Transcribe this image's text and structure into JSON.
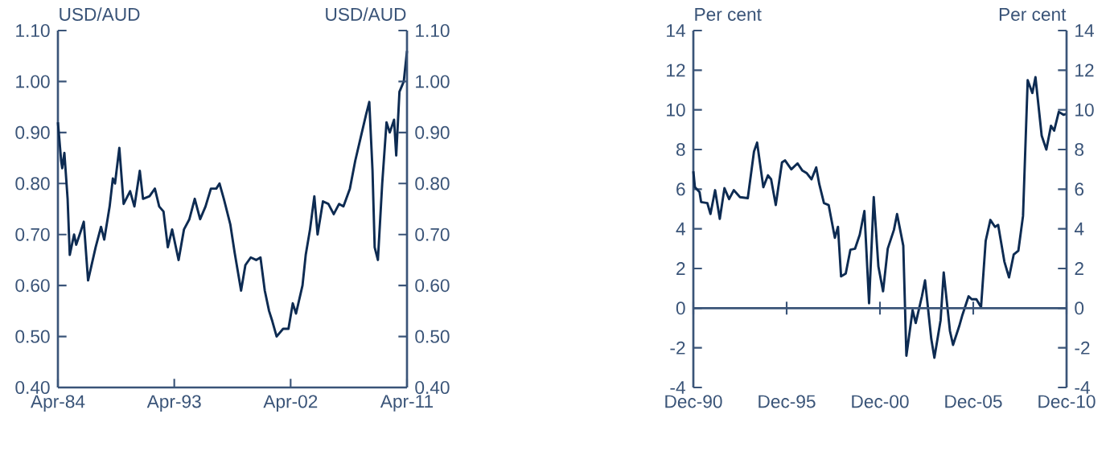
{
  "chart_data": [
    {
      "type": "line",
      "ylabel": "USD/AUD",
      "y2label": "USD/AUD",
      "color": "#0d2b52",
      "x": [
        "1984-04",
        "1984-07",
        "1984-08",
        "1984-10",
        "1985-01",
        "1985-03",
        "1985-07",
        "1985-09",
        "1986-01",
        "1986-04",
        "1986-08",
        "1987-03",
        "1987-08",
        "1987-11",
        "1988-04",
        "1988-07",
        "1988-09",
        "1989-01",
        "1989-05",
        "1989-11",
        "1990-03",
        "1990-08",
        "1990-11",
        "1991-05",
        "1991-10",
        "1992-02",
        "1992-06",
        "1992-10",
        "1993-02",
        "1993-08",
        "1994-01",
        "1994-06",
        "1994-11",
        "1995-04",
        "1995-09",
        "1996-02",
        "1996-07",
        "1996-10",
        "1997-02",
        "1997-08",
        "1997-12",
        "1998-06",
        "1998-10",
        "1999-03",
        "1999-08",
        "1999-12",
        "2000-04",
        "2000-08",
        "2000-11",
        "2001-03",
        "2001-09",
        "2002-02",
        "2002-06",
        "2002-09",
        "2003-03",
        "2003-06",
        "2003-10",
        "2004-02",
        "2004-05",
        "2004-10",
        "2005-03",
        "2005-08",
        "2006-01",
        "2006-05",
        "2006-11",
        "2007-04",
        "2007-09",
        "2008-02",
        "2008-05",
        "2008-08",
        "2008-10",
        "2009-01",
        "2009-05",
        "2009-09",
        "2009-12",
        "2010-04",
        "2010-06",
        "2010-09",
        "2011-01",
        "2011-04"
      ],
      "values": [
        0.92,
        0.845,
        0.83,
        0.86,
        0.77,
        0.66,
        0.7,
        0.68,
        0.705,
        0.725,
        0.61,
        0.675,
        0.715,
        0.69,
        0.755,
        0.81,
        0.8,
        0.87,
        0.76,
        0.785,
        0.755,
        0.825,
        0.77,
        0.775,
        0.79,
        0.755,
        0.745,
        0.675,
        0.71,
        0.65,
        0.71,
        0.73,
        0.77,
        0.73,
        0.755,
        0.79,
        0.79,
        0.8,
        0.77,
        0.72,
        0.665,
        0.59,
        0.64,
        0.655,
        0.65,
        0.655,
        0.59,
        0.55,
        0.53,
        0.5,
        0.515,
        0.515,
        0.565,
        0.545,
        0.6,
        0.66,
        0.71,
        0.775,
        0.7,
        0.765,
        0.76,
        0.74,
        0.76,
        0.755,
        0.79,
        0.845,
        0.89,
        0.935,
        0.96,
        0.825,
        0.675,
        0.65,
        0.8,
        0.92,
        0.9,
        0.925,
        0.855,
        0.98,
        1.0,
        1.06
      ],
      "xlim": [
        "1984-04",
        "2011-04"
      ],
      "xticks": [
        {
          "value": "1984-04",
          "label": "Apr-84"
        },
        {
          "value": "1993-04",
          "label": "Apr-93"
        },
        {
          "value": "2002-04",
          "label": "Apr-02"
        },
        {
          "value": "2011-04",
          "label": "Apr-11"
        }
      ],
      "ylim": [
        0.4,
        1.1
      ],
      "yticks": [
        {
          "value": 0.4,
          "label": "0.40"
        },
        {
          "value": 0.5,
          "label": "0.50"
        },
        {
          "value": 0.6,
          "label": "0.60"
        },
        {
          "value": 0.7,
          "label": "0.70"
        },
        {
          "value": 0.8,
          "label": "0.80"
        },
        {
          "value": 0.9,
          "label": "0.90"
        },
        {
          "value": 1.0,
          "label": "1.00"
        },
        {
          "value": 1.1,
          "label": "1.10"
        }
      ],
      "y2lim": [
        0.4,
        1.1
      ],
      "y2ticks": [
        {
          "value": 0.4,
          "label": "0.40"
        },
        {
          "value": 0.5,
          "label": "0.50"
        },
        {
          "value": 0.6,
          "label": "0.60"
        },
        {
          "value": 0.7,
          "label": "0.70"
        },
        {
          "value": 0.8,
          "label": "0.80"
        },
        {
          "value": 0.9,
          "label": "0.90"
        },
        {
          "value": 1.0,
          "label": "1.00"
        },
        {
          "value": 1.1,
          "label": "1.10"
        }
      ]
    },
    {
      "type": "line",
      "ylabel": "Per cent",
      "y2label": "Per cent",
      "color": "#0d2b52",
      "x": [
        "1990-12",
        "1991-01",
        "1991-04",
        "1991-05",
        "1991-09",
        "1991-11",
        "1992-02",
        "1992-05",
        "1992-08",
        "1992-11",
        "1993-02",
        "1993-06",
        "1993-11",
        "1994-03",
        "1994-05",
        "1994-09",
        "1994-12",
        "1995-02",
        "1995-05",
        "1995-09",
        "1995-11",
        "1996-03",
        "1996-07",
        "1996-10",
        "1997-01",
        "1997-04",
        "1997-07",
        "1997-09",
        "1997-12",
        "1998-03",
        "1998-07",
        "1998-09",
        "1998-11",
        "1999-02",
        "1999-05",
        "1999-08",
        "1999-11",
        "2000-02",
        "2000-05",
        "2000-08",
        "2000-11",
        "2001-02",
        "2001-05",
        "2001-09",
        "2001-11",
        "2002-03",
        "2002-05",
        "2002-09",
        "2002-11",
        "2003-03",
        "2003-05",
        "2003-09",
        "2003-11",
        "2004-03",
        "2004-05",
        "2004-09",
        "2004-11",
        "2005-03",
        "2005-05",
        "2005-09",
        "2005-11",
        "2006-02",
        "2006-05",
        "2006-08",
        "2006-11",
        "2007-02",
        "2007-04",
        "2007-08",
        "2007-11",
        "2008-02",
        "2008-05",
        "2008-08",
        "2008-11",
        "2009-02",
        "2009-04",
        "2009-08",
        "2009-11",
        "2010-02",
        "2010-04",
        "2010-07",
        "2010-10",
        "2010-12"
      ],
      "values": [
        6.9,
        6.1,
        5.85,
        5.35,
        5.3,
        4.75,
        5.95,
        4.5,
        6.05,
        5.5,
        5.95,
        5.6,
        5.55,
        7.9,
        8.35,
        6.1,
        6.7,
        6.5,
        5.2,
        7.35,
        7.45,
        7.0,
        7.3,
        6.95,
        6.8,
        6.5,
        7.1,
        6.25,
        5.3,
        5.2,
        3.55,
        4.1,
        1.6,
        1.75,
        2.95,
        3.0,
        3.7,
        4.9,
        0.25,
        5.6,
        2.1,
        0.85,
        3.0,
        3.95,
        4.75,
        3.15,
        -2.4,
        -0.1,
        -0.75,
        0.6,
        1.4,
        -1.55,
        -2.5,
        -0.6,
        1.8,
        -1.15,
        -1.85,
        -0.9,
        -0.35,
        0.6,
        0.45,
        0.45,
        0.05,
        3.4,
        4.45,
        4.1,
        4.2,
        2.35,
        1.55,
        2.7,
        2.9,
        4.65,
        11.5,
        10.85,
        11.65,
        8.7,
        8.0,
        9.2,
        8.95,
        9.9,
        9.75,
        9.8
      ],
      "xlim": [
        "1990-12",
        "2010-12"
      ],
      "xticks": [
        {
          "value": "1990-12",
          "label": "Dec-90"
        },
        {
          "value": "1995-12",
          "label": "Dec-95"
        },
        {
          "value": "2000-12",
          "label": "Dec-00"
        },
        {
          "value": "2005-12",
          "label": "Dec-05"
        },
        {
          "value": "2010-12",
          "label": "Dec-10"
        }
      ],
      "ylim": [
        -4,
        14
      ],
      "yticks": [
        -4,
        -2,
        0,
        2,
        4,
        6,
        8,
        10,
        12,
        14
      ],
      "y2lim": [
        -4,
        14
      ],
      "y2ticks": [
        -4,
        -2,
        0,
        2,
        4,
        6,
        8,
        10,
        12,
        14
      ],
      "ref_lines": [
        {
          "axis": "y",
          "value": 0
        }
      ]
    }
  ]
}
